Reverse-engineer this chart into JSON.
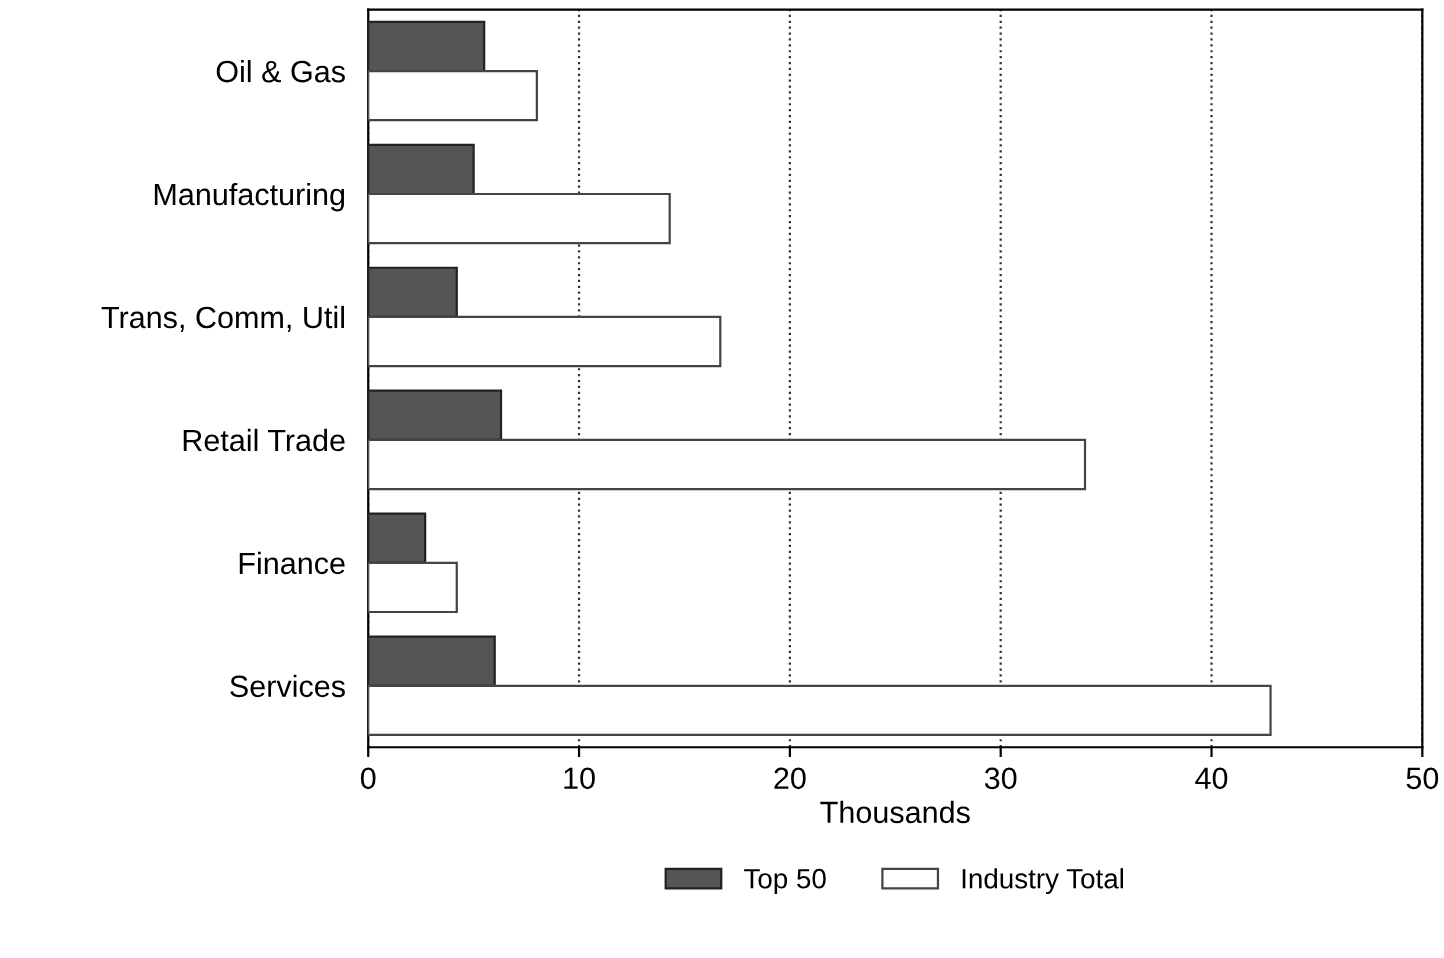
{
  "chart_data": {
    "type": "bar",
    "orientation": "horizontal",
    "categories": [
      "Oil & Gas",
      "Manufacturing",
      "Trans, Comm, Util",
      "Retail Trade",
      "Finance",
      "Services"
    ],
    "series": [
      {
        "name": "Top 50",
        "color": "#555555",
        "values": [
          5.5,
          5.0,
          4.2,
          6.3,
          2.7,
          6.0
        ]
      },
      {
        "name": "Industry Total",
        "color": "#ffffff",
        "values": [
          8.0,
          14.3,
          16.7,
          34.0,
          4.2,
          42.8
        ]
      }
    ],
    "xlabel": "Thousands",
    "xlim": [
      0,
      50
    ],
    "xticks": [
      0,
      10,
      20,
      30,
      40,
      50
    ],
    "grid": "x",
    "legend": "bottom"
  }
}
